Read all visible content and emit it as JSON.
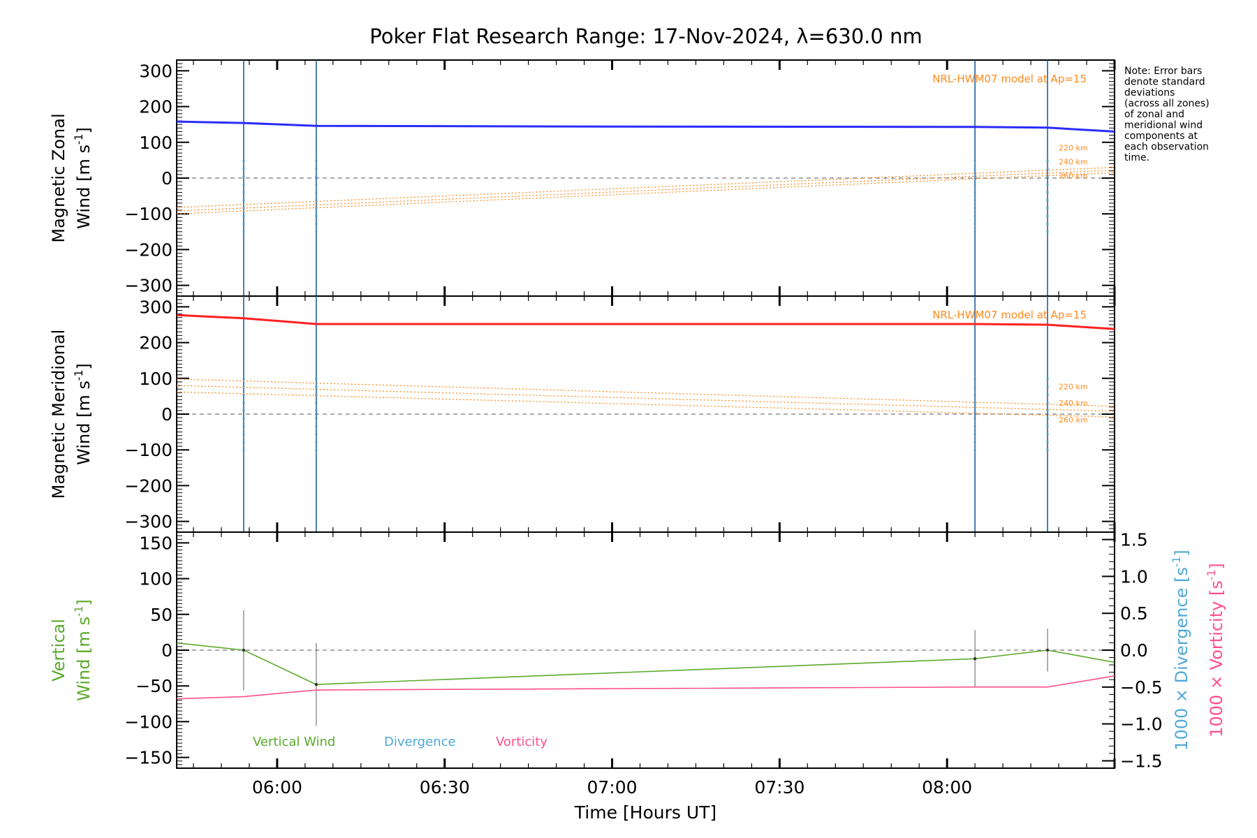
{
  "title": "Poker Flat Research Range: 17-Nov-2024, λ=630.0 nm",
  "note": [
    "Note: Error bars",
    "denote standard",
    "deviations",
    "(across all zones)",
    "of zonal and",
    "meridional wind",
    "components at",
    "each observation",
    "time."
  ],
  "colors": {
    "zonal": "#2b2bff",
    "meridional": "#ff2020",
    "model": "#ff8a1f",
    "vertical": "#5aaa2a",
    "divergence": "#4fa8d8",
    "vorticity": "#ff4f8a",
    "obs_line": "#1f5f9f",
    "error": "#7a7a7a"
  },
  "chart_data": [
    {
      "type": "line",
      "panel": "zonal",
      "ylabel": "Magnetic Zonal Wind [m s⁻¹]",
      "ylabel_lines": [
        "Magnetic Zonal",
        "Wind [m s⁻¹]"
      ],
      "ylim": [
        -330,
        330
      ],
      "yticks": [
        300,
        200,
        100,
        0,
        -100,
        -200,
        -300
      ],
      "yticklabels": [
        "300",
        "200",
        "100",
        "0",
        "−100",
        "−200",
        "−300"
      ],
      "xlim": [
        "05:42",
        "08:30"
      ],
      "obs_times": [
        "05:54",
        "06:07",
        "08:05",
        "08:18"
      ],
      "model_label": "NRL-HWM07 model at Ap=15",
      "series": [
        {
          "name": "220 km",
          "x": [
            "05:42",
            "08:30"
          ],
          "y": [
            -82,
            30
          ]
        },
        {
          "name": "240 km",
          "x": [
            "05:42",
            "08:30"
          ],
          "y": [
            -92,
            22
          ]
        },
        {
          "name": "260 km",
          "x": [
            "05:42",
            "08:30"
          ],
          "y": [
            -100,
            15
          ]
        },
        {
          "x": [
            "05:42",
            "05:54",
            "06:07",
            "07:00",
            "08:05",
            "08:18",
            "08:30"
          ],
          "y": [
            158,
            154,
            146,
            144,
            143,
            141,
            130
          ]
        }
      ]
    },
    {
      "type": "line",
      "panel": "meridional",
      "ylabel": "Magnetic Meridional Wind [m s⁻¹]",
      "ylabel_lines": [
        "Magnetic Meridional",
        "Wind [m s⁻¹]"
      ],
      "ylim": [
        -330,
        330
      ],
      "yticks": [
        300,
        200,
        100,
        0,
        -100,
        -200,
        -300
      ],
      "yticklabels": [
        "300",
        "200",
        "100",
        "0",
        "−100",
        "−200",
        "−300"
      ],
      "xlim": [
        "05:42",
        "08:30"
      ],
      "obs_times": [
        "05:54",
        "06:07",
        "08:05",
        "08:18"
      ],
      "model_label": "NRL-HWM07 model at Ap=15",
      "series": [
        {
          "name": "220 km",
          "x": [
            "05:42",
            "08:30"
          ],
          "y": [
            98,
            22
          ]
        },
        {
          "name": "240 km",
          "x": [
            "05:42",
            "08:30"
          ],
          "y": [
            80,
            8
          ]
        },
        {
          "name": "260 km",
          "x": [
            "05:42",
            "08:30"
          ],
          "y": [
            62,
            -8
          ]
        },
        {
          "x": [
            "05:42",
            "05:54",
            "06:07",
            "07:00",
            "08:05",
            "08:18",
            "08:30"
          ],
          "y": [
            277,
            268,
            252,
            252,
            252,
            250,
            238
          ]
        }
      ]
    },
    {
      "type": "line",
      "panel": "vertical",
      "ylabel": "Vertical Wind [m s⁻¹]",
      "ylabel_lines": [
        "Vertical",
        "Wind [m s⁻¹]"
      ],
      "ylim": [
        -165,
        165
      ],
      "yticks": [
        150,
        100,
        50,
        0,
        -50,
        -100,
        -150
      ],
      "yticklabels": [
        "150",
        "100",
        "50",
        "0",
        "−50",
        "−100",
        "−150"
      ],
      "y2label_divergence": "1000 × Divergence [s⁻¹]",
      "y2label_vorticity": "1000 × Vorticity [s⁻¹]",
      "y2lim": [
        -1.6,
        1.6
      ],
      "y2ticks": [
        1.5,
        1.0,
        0.5,
        0.0,
        -0.5,
        -1.0,
        -1.5
      ],
      "y2ticklabels": [
        "1.5",
        "1.0",
        "0.5",
        "0.0",
        "−0.5",
        "−1.0",
        "−1.5"
      ],
      "xlabel": "Time [Hours UT]",
      "xlim": [
        "05:42",
        "08:30"
      ],
      "xticks": [
        "06:00",
        "06:30",
        "07:00",
        "07:30",
        "08:00"
      ],
      "series": [
        {
          "name": "Vertical Wind",
          "x": [
            "05:42",
            "05:54",
            "06:07",
            "08:05",
            "08:18",
            "08:30"
          ],
          "y": [
            10,
            0,
            -48,
            -12,
            0,
            -17
          ],
          "err": [
            null,
            56,
            58,
            40,
            30,
            null
          ]
        },
        {
          "name": "Vorticity",
          "axis": "right",
          "x": [
            "05:42",
            "05:54",
            "06:07",
            "08:05",
            "08:18",
            "08:30"
          ],
          "y": [
            -0.66,
            -0.63,
            -0.54,
            -0.5,
            -0.5,
            -0.35
          ]
        },
        {
          "name": "Divergence",
          "axis": "right",
          "x": [],
          "y": []
        }
      ]
    }
  ]
}
